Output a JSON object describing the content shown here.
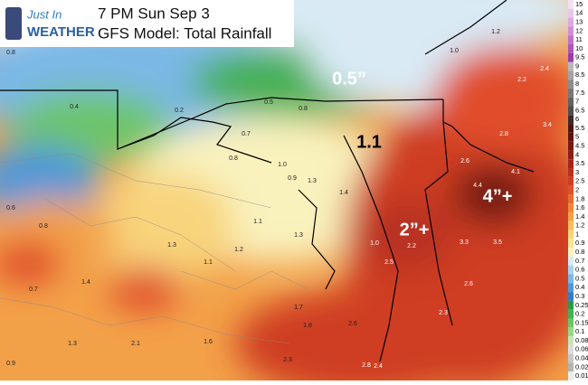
{
  "header": {
    "logo_top": "Just In",
    "logo_bottom": "WEATHER",
    "time": "7 PM Sun Sep 3",
    "title": "GFS Model: Total Rainfall"
  },
  "annotations": [
    "0.5”",
    "1.1",
    "2”+",
    "4”+"
  ],
  "map_labels": [
    "0.8",
    "0.3",
    "0.4",
    "0.4",
    "0.2",
    "0.5",
    "0.8",
    "0.7",
    "0.8",
    "1.0",
    "0.9",
    "1.3",
    "1.4",
    "1.1",
    "1.2",
    "1.3",
    "1.3",
    "1.4",
    "0.7",
    "1.1",
    "1.0",
    "2.2",
    "2.5",
    "3.3",
    "3.5",
    "2.6",
    "2.3",
    "1.7",
    "1.8",
    "2.6",
    "2.8",
    "2.4",
    "2.3",
    "2.1",
    "1.6",
    "1.3",
    "0.9",
    "2.4",
    "2.2",
    "3.4",
    "2.8",
    "2.6",
    "4.1",
    "4.4",
    "1.0",
    "1.2",
    "0.6",
    "0.8"
  ],
  "legend": [
    {
      "label": "15",
      "color": "#f3e1f3"
    },
    {
      "label": "14",
      "color": "#e9c6ea"
    },
    {
      "label": "13",
      "color": "#dcaadf"
    },
    {
      "label": "12",
      "color": "#cf8fd4"
    },
    {
      "label": "11",
      "color": "#bf72c6"
    },
    {
      "label": "10",
      "color": "#ac57b5"
    },
    {
      "label": "9.5",
      "color": "#9a3ea5"
    },
    {
      "label": "9",
      "color": "#b8b8b8"
    },
    {
      "label": "8.5",
      "color": "#a3a3a3"
    },
    {
      "label": "8",
      "color": "#8c8c8c"
    },
    {
      "label": "7.5",
      "color": "#777777"
    },
    {
      "label": "7",
      "color": "#626262"
    },
    {
      "label": "6.5",
      "color": "#4e4e4e"
    },
    {
      "label": "6",
      "color": "#3a2a2a"
    },
    {
      "label": "5.5",
      "color": "#4a1515"
    },
    {
      "label": "5",
      "color": "#5e1512"
    },
    {
      "label": "4.5",
      "color": "#731a14"
    },
    {
      "label": "4",
      "color": "#891f17"
    },
    {
      "label": "3.5",
      "color": "#a0261b"
    },
    {
      "label": "3",
      "color": "#b83020"
    },
    {
      "label": "2.5",
      "color": "#cf3c24"
    },
    {
      "label": "2",
      "color": "#e14e29"
    },
    {
      "label": "1.8",
      "color": "#ea6a30"
    },
    {
      "label": "1.6",
      "color": "#f0863a"
    },
    {
      "label": "1.4",
      "color": "#f3a149"
    },
    {
      "label": "1.2",
      "color": "#f6bc60"
    },
    {
      "label": "1",
      "color": "#f8d47c"
    },
    {
      "label": "0.9",
      "color": "#f9e59a"
    },
    {
      "label": "0.8",
      "color": "#f9f2bd"
    },
    {
      "label": "0.7",
      "color": "#d9eaf5"
    },
    {
      "label": "0.6",
      "color": "#a9d3ef"
    },
    {
      "label": "0.5",
      "color": "#7bb8e6"
    },
    {
      "label": "0.4",
      "color": "#4f98d8"
    },
    {
      "label": "0.3",
      "color": "#347cc4"
    },
    {
      "label": "0.25",
      "color": "#2a9a48"
    },
    {
      "label": "0.2",
      "color": "#47b055"
    },
    {
      "label": "0.15",
      "color": "#6dc46a"
    },
    {
      "label": "0.1",
      "color": "#98d68a"
    },
    {
      "label": "0.08",
      "color": "#c5e6b5"
    },
    {
      "label": "0.06",
      "color": "#dcdcdc"
    },
    {
      "label": "0.04",
      "color": "#c8c8c8"
    },
    {
      "label": "0.02",
      "color": "#b4b4b4"
    },
    {
      "label": "0.01",
      "color": "#ececec"
    }
  ]
}
